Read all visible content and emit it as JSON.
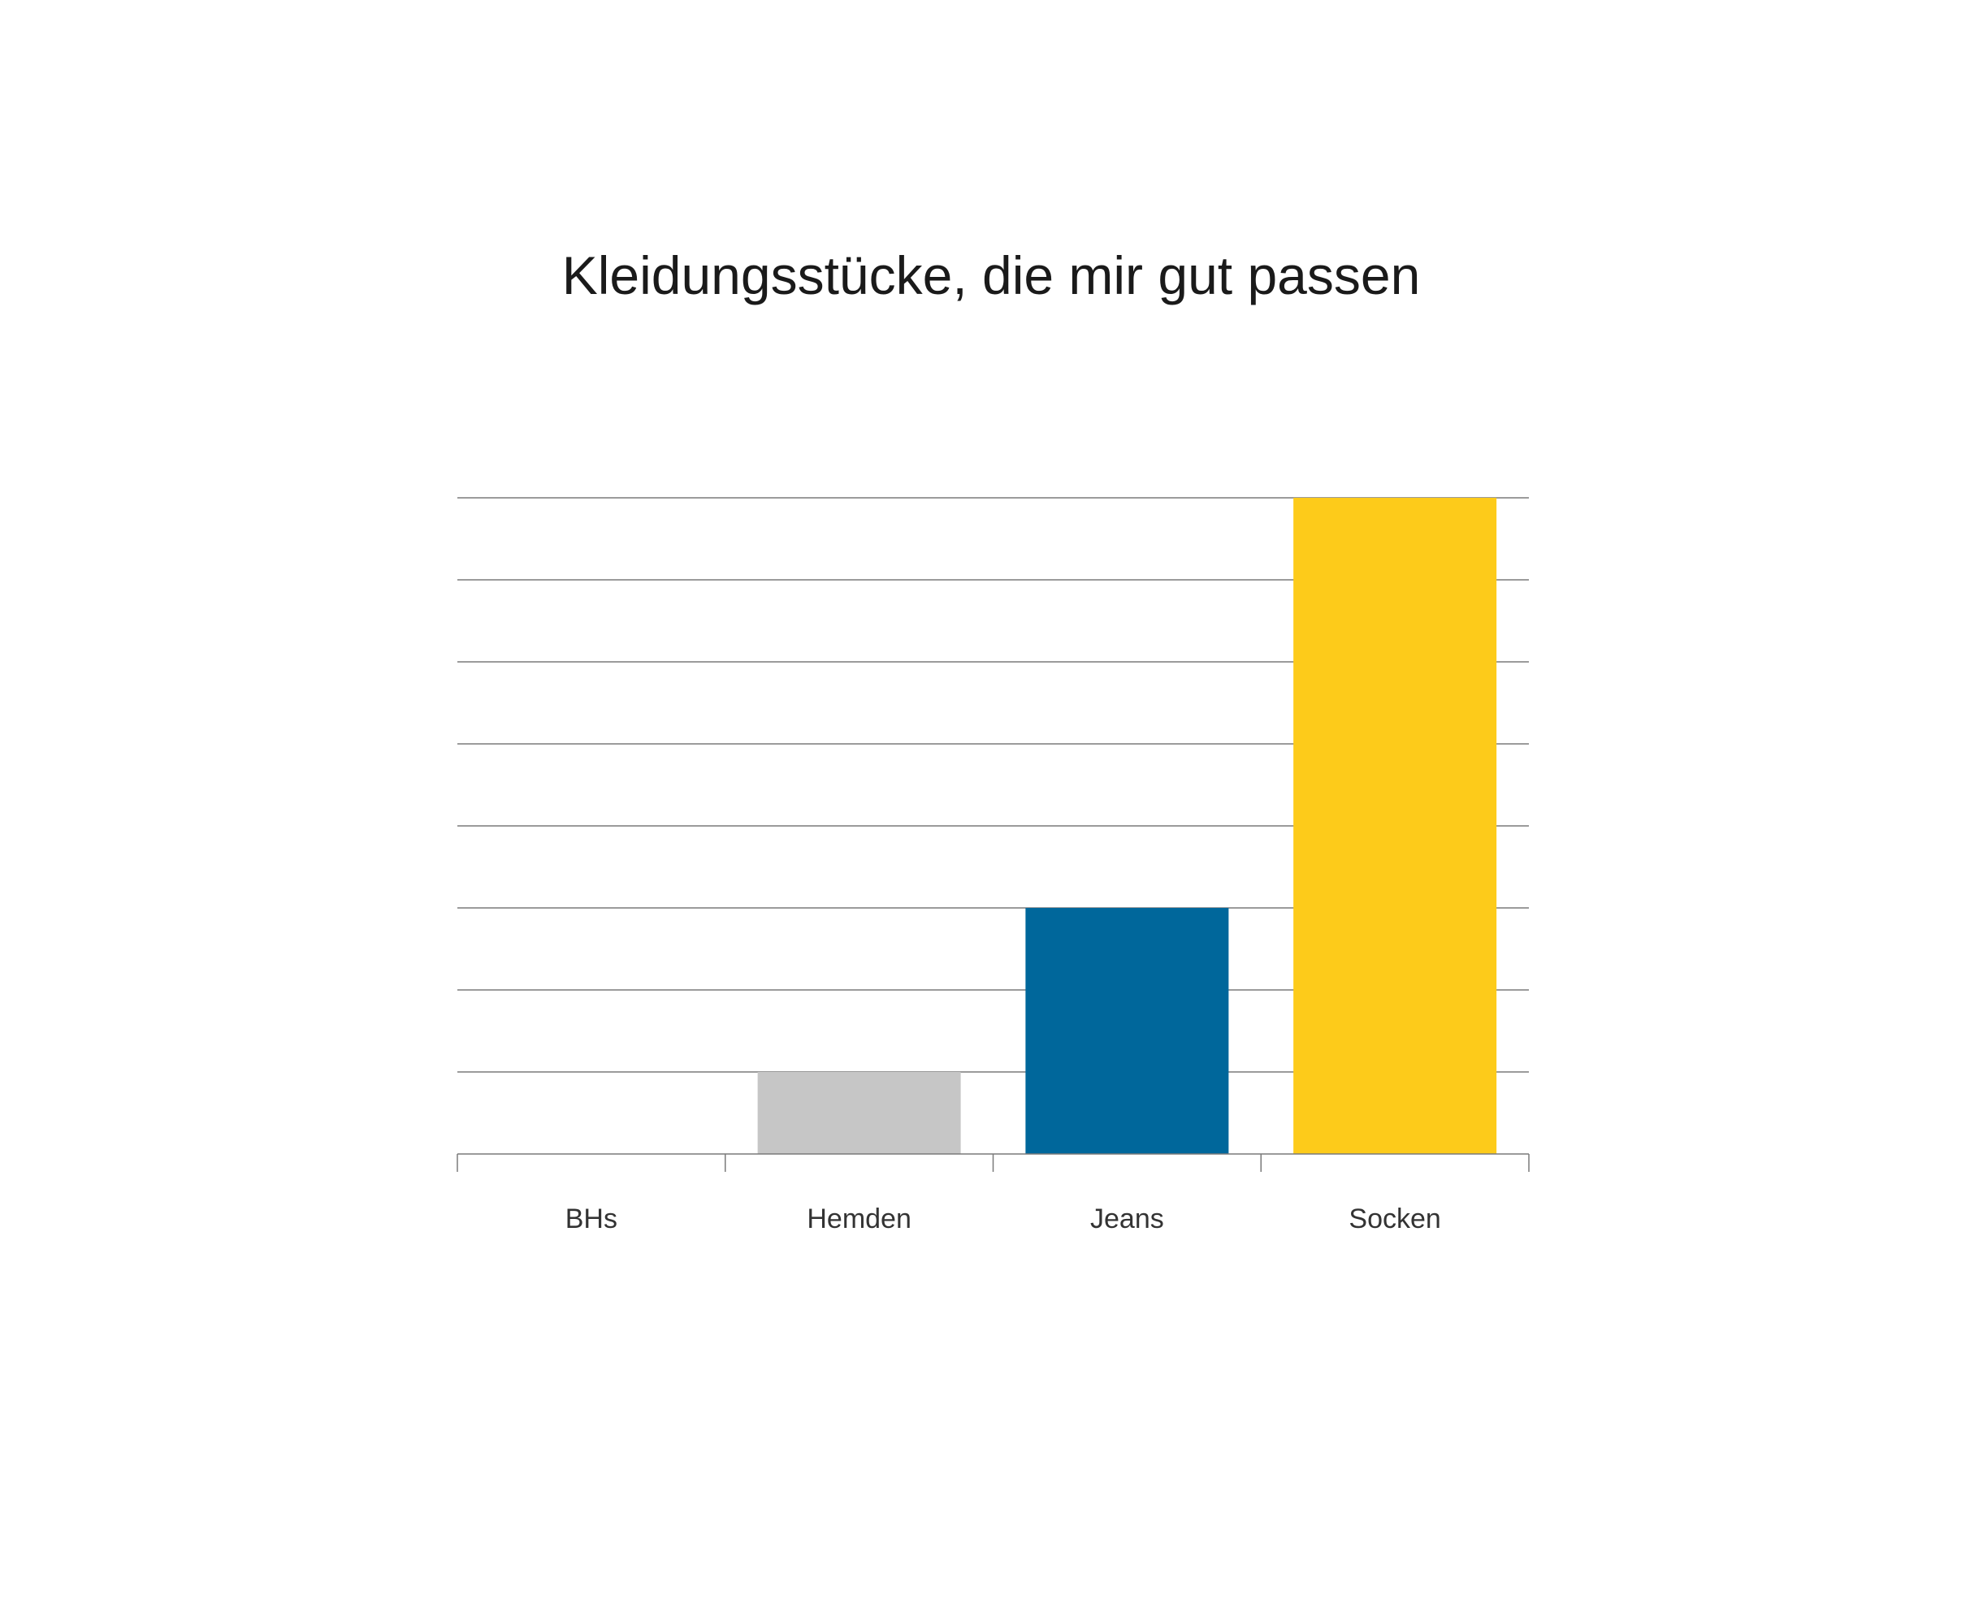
{
  "chart_data": {
    "type": "bar",
    "title": "Kleidungsstücke, die mir gut passen",
    "categories": [
      "BHs",
      "Hemden",
      "Jeans",
      "Socken"
    ],
    "values": [
      0,
      1,
      3,
      8
    ],
    "ylim": [
      0,
      8
    ],
    "y_ticks": 8,
    "grid": true,
    "colors": [
      "#ffffff",
      "#c6c6c6",
      "#00679b",
      "#fdcb1a"
    ],
    "grid_color": "#7a7a7a",
    "axis_color": "#7a7a7a"
  }
}
